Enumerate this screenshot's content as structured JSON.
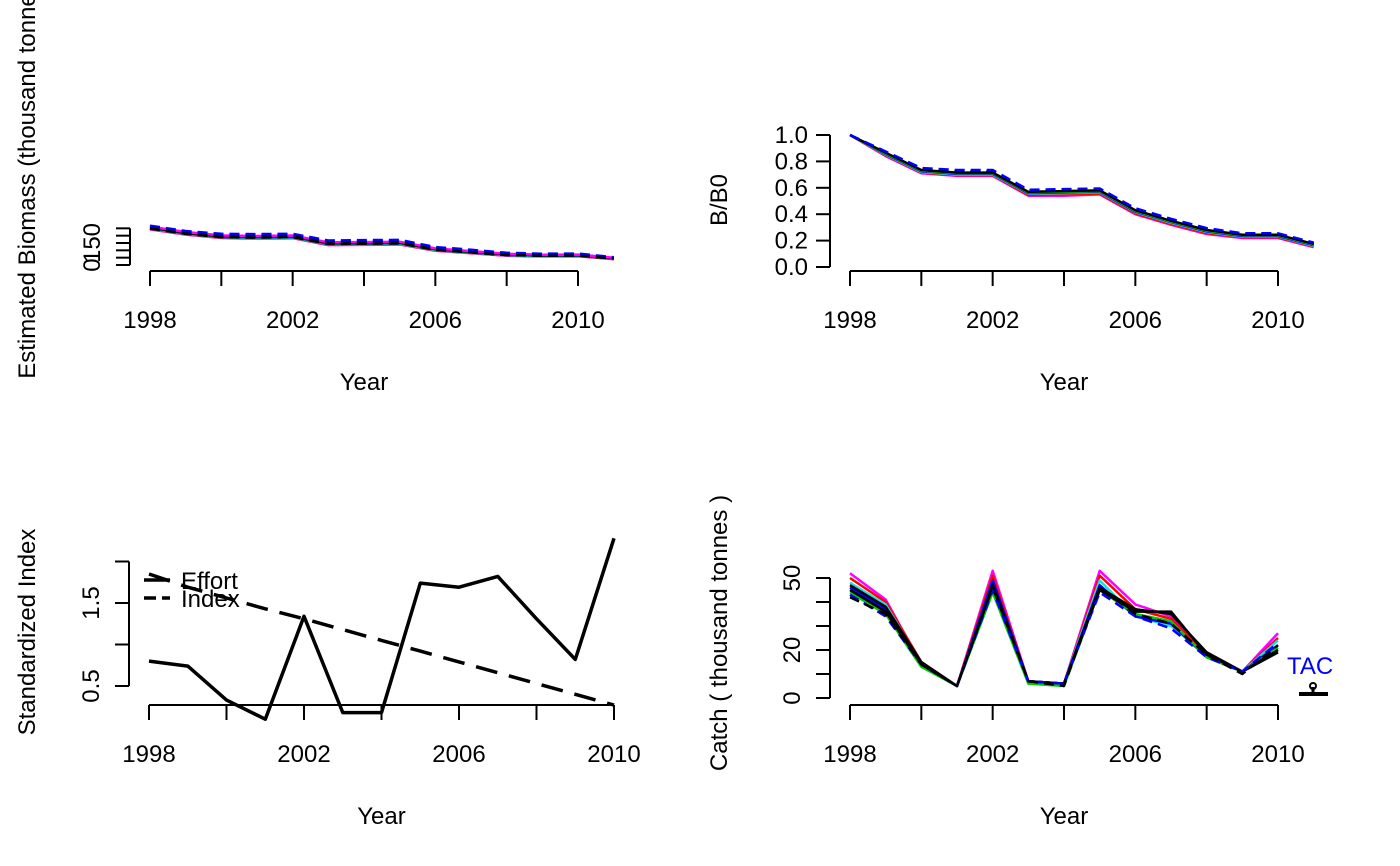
{
  "colors": {
    "foreground": "#000000",
    "background": "#ffffff",
    "tac_label": "#0000ff"
  },
  "chart_data": [
    {
      "type": "line",
      "position": "top-left",
      "title": "",
      "xlabel": "Year",
      "ylabel": "Estimated Biomass (thousand tonnes)",
      "xlim": [
        1998,
        2011
      ],
      "ylim": [
        0,
        250
      ],
      "xticks": [
        1998,
        2000,
        2002,
        2004,
        2006,
        2008,
        2010
      ],
      "xtick_labels": [
        "1998",
        "",
        "2002",
        "",
        "2006",
        "",
        "2010"
      ],
      "yticks": [
        0,
        50,
        100,
        150,
        200,
        250
      ],
      "ytick_labels": [
        "0",
        "",
        "",
        "150",
        "",
        ""
      ],
      "x": [
        1998,
        1999,
        2000,
        2001,
        2002,
        2003,
        2004,
        2005,
        2006,
        2007,
        2008,
        2009,
        2010,
        2011
      ],
      "series": [
        {
          "values": [
            243,
            207,
            184,
            180,
            183,
            136,
            137,
            140,
            97,
            80,
            63,
            58,
            60,
            40
          ],
          "color": "#ff00ff"
        },
        {
          "values": [
            246,
            209,
            186,
            182,
            185,
            139,
            140,
            142,
            99,
            82,
            65,
            60,
            61,
            41
          ],
          "color": "#ff0000"
        },
        {
          "values": [
            248,
            211,
            188,
            184,
            187,
            141,
            142,
            144,
            101,
            84,
            66,
            61,
            63,
            43
          ],
          "color": "#1fdede"
        },
        {
          "values": [
            251,
            214,
            191,
            187,
            190,
            144,
            145,
            147,
            104,
            86,
            68,
            63,
            65,
            44
          ],
          "color": "#0000ff"
        },
        {
          "values": [
            253,
            216,
            193,
            189,
            192,
            146,
            147,
            149,
            106,
            88,
            70,
            65,
            66,
            45
          ],
          "color": "#00cd00"
        },
        {
          "values": [
            256,
            219,
            196,
            192,
            195,
            149,
            150,
            152,
            109,
            91,
            72,
            67,
            68,
            47
          ],
          "color": "#000000"
        },
        {
          "values": [
            259,
            222,
            199,
            195,
            198,
            152,
            153,
            155,
            111,
            93,
            74,
            69,
            70,
            48
          ],
          "color": "#000000"
        },
        {
          "values": [
            262,
            225,
            202,
            198,
            201,
            155,
            156,
            158,
            113,
            95,
            76,
            70,
            71,
            49
          ],
          "color": "#ff00ff"
        },
        {
          "values": [
            265,
            228,
            206,
            203,
            206,
            161,
            162,
            164,
            118,
            99,
            79,
            73,
            74,
            51
          ],
          "color": "#000000",
          "dashed": true
        },
        {
          "values": [
            268,
            232,
            213,
            211,
            213,
            167,
            170,
            171,
            123,
            104,
            83,
            77,
            78,
            53
          ],
          "color": "#0000ff",
          "dashed": true
        },
        {
          "values": [
            248,
            212,
            190,
            187,
            190,
            144,
            145,
            147,
            103,
            86,
            68,
            63,
            64,
            43
          ],
          "color": "#000000",
          "dashed": true
        }
      ]
    },
    {
      "type": "line",
      "position": "top-right",
      "title": "",
      "xlabel": "Year",
      "ylabel": "B/B0",
      "xlim": [
        1998,
        2011
      ],
      "ylim": [
        0,
        1
      ],
      "xticks": [
        1998,
        2000,
        2002,
        2004,
        2006,
        2008,
        2010
      ],
      "xtick_labels": [
        "1998",
        "",
        "2002",
        "",
        "2006",
        "",
        "2010"
      ],
      "yticks": [
        0,
        0.2,
        0.4,
        0.6,
        0.8,
        1.0
      ],
      "ytick_labels": [
        "0.0",
        "0.2",
        "0.4",
        "0.6",
        "0.8",
        "1.0"
      ],
      "x": [
        1998,
        1999,
        2000,
        2001,
        2002,
        2003,
        2004,
        2005,
        2006,
        2007,
        2008,
        2009,
        2010,
        2011
      ],
      "series": [
        {
          "values": [
            1.0,
            0.84,
            0.71,
            0.69,
            0.69,
            0.54,
            0.54,
            0.55,
            0.4,
            0.32,
            0.25,
            0.22,
            0.22,
            0.15
          ],
          "color": "#ff00ff"
        },
        {
          "values": [
            1.0,
            0.845,
            0.715,
            0.695,
            0.695,
            0.545,
            0.55,
            0.555,
            0.405,
            0.325,
            0.255,
            0.225,
            0.225,
            0.155
          ],
          "color": "#ff0000"
        },
        {
          "values": [
            1.0,
            0.85,
            0.72,
            0.7,
            0.7,
            0.555,
            0.56,
            0.565,
            0.415,
            0.335,
            0.265,
            0.23,
            0.23,
            0.16
          ],
          "color": "#1fdede"
        },
        {
          "values": [
            1.0,
            0.855,
            0.725,
            0.705,
            0.705,
            0.56,
            0.565,
            0.57,
            0.42,
            0.34,
            0.27,
            0.235,
            0.235,
            0.165
          ],
          "color": "#0000ff"
        },
        {
          "values": [
            1.0,
            0.86,
            0.73,
            0.71,
            0.71,
            0.565,
            0.57,
            0.575,
            0.425,
            0.345,
            0.275,
            0.24,
            0.24,
            0.17
          ],
          "color": "#00cd00"
        },
        {
          "values": [
            1.0,
            0.865,
            0.735,
            0.715,
            0.715,
            0.57,
            0.575,
            0.58,
            0.43,
            0.35,
            0.28,
            0.245,
            0.245,
            0.175
          ],
          "color": "#000000"
        },
        {
          "values": [
            1.0,
            0.87,
            0.745,
            0.725,
            0.725,
            0.58,
            0.585,
            0.59,
            0.44,
            0.36,
            0.29,
            0.25,
            0.25,
            0.18
          ],
          "color": "#000000",
          "dashed": true
        },
        {
          "values": [
            1.0,
            0.875,
            0.75,
            0.735,
            0.735,
            0.585,
            0.59,
            0.595,
            0.445,
            0.365,
            0.295,
            0.255,
            0.255,
            0.185
          ],
          "color": "#0000ff",
          "dashed": true
        }
      ]
    },
    {
      "type": "line",
      "position": "bottom-left",
      "title": "",
      "xlabel": "Year",
      "ylabel": "Standardized Index",
      "xlim": [
        1998,
        2010
      ],
      "ylim": [
        0,
        2
      ],
      "xticks": [
        1998,
        2000,
        2002,
        2004,
        2006,
        2008,
        2010
      ],
      "xtick_labels": [
        "1998",
        "",
        "2002",
        "",
        "2006",
        "",
        "2010"
      ],
      "yticks": [
        0.5,
        1.0,
        1.5,
        2.0
      ],
      "ytick_labels": [
        "0.5",
        "",
        "1.5",
        ""
      ],
      "legend": {
        "position": "top-left",
        "entries": [
          "Effort",
          "Index"
        ]
      },
      "x": [
        1998,
        1999,
        2000,
        2001,
        2002,
        2003,
        2004,
        2005,
        2006,
        2007,
        2008,
        2009,
        2010
      ],
      "series": [
        {
          "name": "Effort",
          "values": [
            0.8,
            0.74,
            0.33,
            0.1,
            1.34,
            0.18,
            0.18,
            1.74,
            1.69,
            1.82,
            1.31,
            0.82,
            2.28
          ],
          "color": "#000000",
          "dashed": false
        },
        {
          "name": "Index",
          "values": [
            1.85,
            1.69,
            1.56,
            1.43,
            1.31,
            1.18,
            1.05,
            0.92,
            0.79,
            0.66,
            0.53,
            0.4,
            0.27
          ],
          "color": "#000000",
          "dashed": true
        }
      ]
    },
    {
      "type": "line",
      "position": "bottom-right",
      "title": "",
      "xlabel": "Year",
      "ylabel": "Catch ( thousand tonnes )",
      "xlim": [
        1998,
        2011
      ],
      "ylim": [
        0,
        50
      ],
      "xticks": [
        1998,
        2000,
        2002,
        2004,
        2006,
        2008,
        2010
      ],
      "xtick_labels": [
        "1998",
        "",
        "2002",
        "",
        "2006",
        "",
        "2010"
      ],
      "yticks": [
        0,
        10,
        20,
        30,
        40,
        50
      ],
      "ytick_labels": [
        "0",
        "",
        "20",
        "",
        "",
        "50"
      ],
      "annotations": [
        {
          "text": "TAC",
          "x": 2011,
          "y": 13,
          "color": "#0000ff"
        }
      ],
      "tac_value": 2.5,
      "x": [
        1998,
        1999,
        2000,
        2001,
        2002,
        2003,
        2004,
        2005,
        2006,
        2007,
        2008,
        2009,
        2010
      ],
      "series": [
        {
          "values": [
            52,
            41,
            14,
            5,
            53,
            7,
            6,
            53,
            39,
            34,
            19,
            11,
            27
          ],
          "color": "#ff00ff"
        },
        {
          "values": [
            50,
            40,
            15,
            5,
            51,
            7,
            6,
            51,
            37,
            33,
            18,
            11,
            25
          ],
          "color": "#ff0000"
        },
        {
          "values": [
            48,
            39,
            14,
            5,
            48,
            7,
            6,
            49,
            34,
            30,
            18,
            11,
            24
          ],
          "color": "#1fdede"
        },
        {
          "values": [
            46,
            37,
            14,
            5,
            49,
            7,
            6,
            47,
            34,
            31,
            17,
            11,
            22
          ],
          "color": "#0000ff"
        },
        {
          "values": [
            44,
            35,
            13,
            5,
            44,
            6,
            5,
            45,
            35,
            32,
            17,
            11,
            21
          ],
          "color": "#00cd00"
        },
        {
          "values": [
            45,
            36,
            14,
            5,
            46,
            7,
            6,
            45,
            36,
            36,
            18,
            11,
            19
          ],
          "color": "#000000"
        },
        {
          "values": [
            47,
            38,
            15,
            5,
            47,
            7,
            6,
            46,
            37,
            35,
            19,
            11,
            20
          ],
          "color": "#000000"
        },
        {
          "values": [
            43,
            34,
            14,
            5,
            45,
            7,
            6,
            44,
            34,
            29,
            17,
            11,
            23
          ],
          "color": "#0000ff",
          "dashed": true
        },
        {
          "values": [
            42,
            35,
            14,
            5,
            47,
            7,
            5,
            46,
            35,
            31,
            18,
            10,
            22
          ],
          "color": "#000000",
          "dashed": true
        }
      ]
    }
  ]
}
